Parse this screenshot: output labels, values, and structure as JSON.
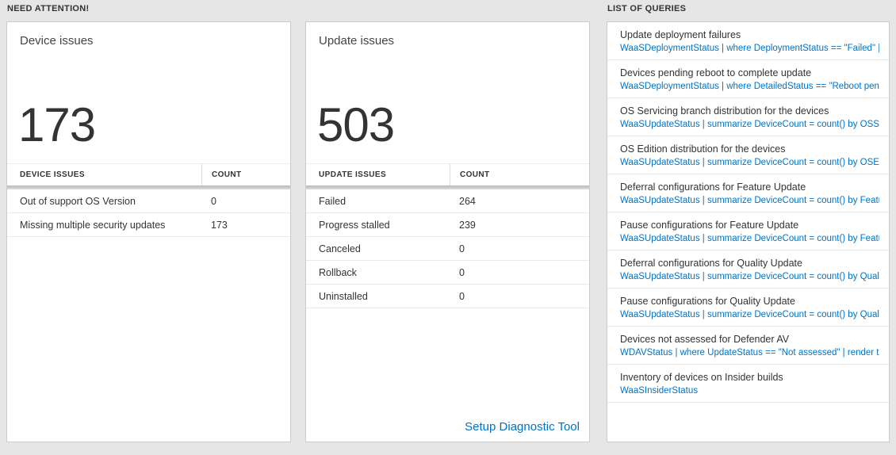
{
  "colors": {
    "accent": "#0072c6",
    "background": "#e6e6e6"
  },
  "sections": {
    "need_attention": "NEED ATTENTION!",
    "list_of_queries": "LIST OF QUERIES"
  },
  "device_card": {
    "title": "Device issues",
    "count": "173",
    "table": {
      "headers": [
        "DEVICE ISSUES",
        "COUNT"
      ],
      "rows": [
        {
          "label": "Out of support OS Version",
          "count": "0"
        },
        {
          "label": "Missing multiple security updates",
          "count": "173"
        }
      ]
    }
  },
  "update_card": {
    "title": "Update issues",
    "count": "503",
    "table": {
      "headers": [
        "UPDATE ISSUES",
        "COUNT"
      ],
      "rows": [
        {
          "label": "Failed",
          "count": "264"
        },
        {
          "label": "Progress stalled",
          "count": "239"
        },
        {
          "label": "Canceled",
          "count": "0"
        },
        {
          "label": "Rollback",
          "count": "0"
        },
        {
          "label": "Uninstalled",
          "count": "0"
        }
      ]
    },
    "link": "Setup Diagnostic Tool"
  },
  "queries": {
    "items": [
      {
        "title": "Update deployment failures",
        "query": "WaaSDeploymentStatus | where DeploymentStatus == \"Failed\" |…"
      },
      {
        "title": "Devices pending reboot to complete update",
        "query": "WaaSDeploymentStatus | where DetailedStatus == \"Reboot pend…"
      },
      {
        "title": "OS Servicing branch distribution for the devices",
        "query": "WaaSUpdateStatus | summarize DeviceCount = count() by OSSer…"
      },
      {
        "title": "OS Edition distribution for the devices",
        "query": "WaaSUpdateStatus | summarize DeviceCount = count() by OSEdit…"
      },
      {
        "title": "Deferral configurations for Feature Update",
        "query": "WaaSUpdateStatus | summarize DeviceCount = count() by Featur…"
      },
      {
        "title": "Pause configurations for Feature Update",
        "query": "WaaSUpdateStatus | summarize DeviceCount = count() by Featur…"
      },
      {
        "title": "Deferral configurations for Quality Update",
        "query": "WaaSUpdateStatus | summarize DeviceCount = count() by Qualit…"
      },
      {
        "title": "Pause configurations for Quality Update",
        "query": "WaaSUpdateStatus | summarize DeviceCount = count() by Qualit…"
      },
      {
        "title": "Devices not assessed for Defender AV",
        "query": "WDAVStatus | where UpdateStatus == \"Not assessed\" | render ta…"
      },
      {
        "title": "Inventory of devices on Insider builds",
        "query": "WaaSInsiderStatus"
      }
    ]
  }
}
